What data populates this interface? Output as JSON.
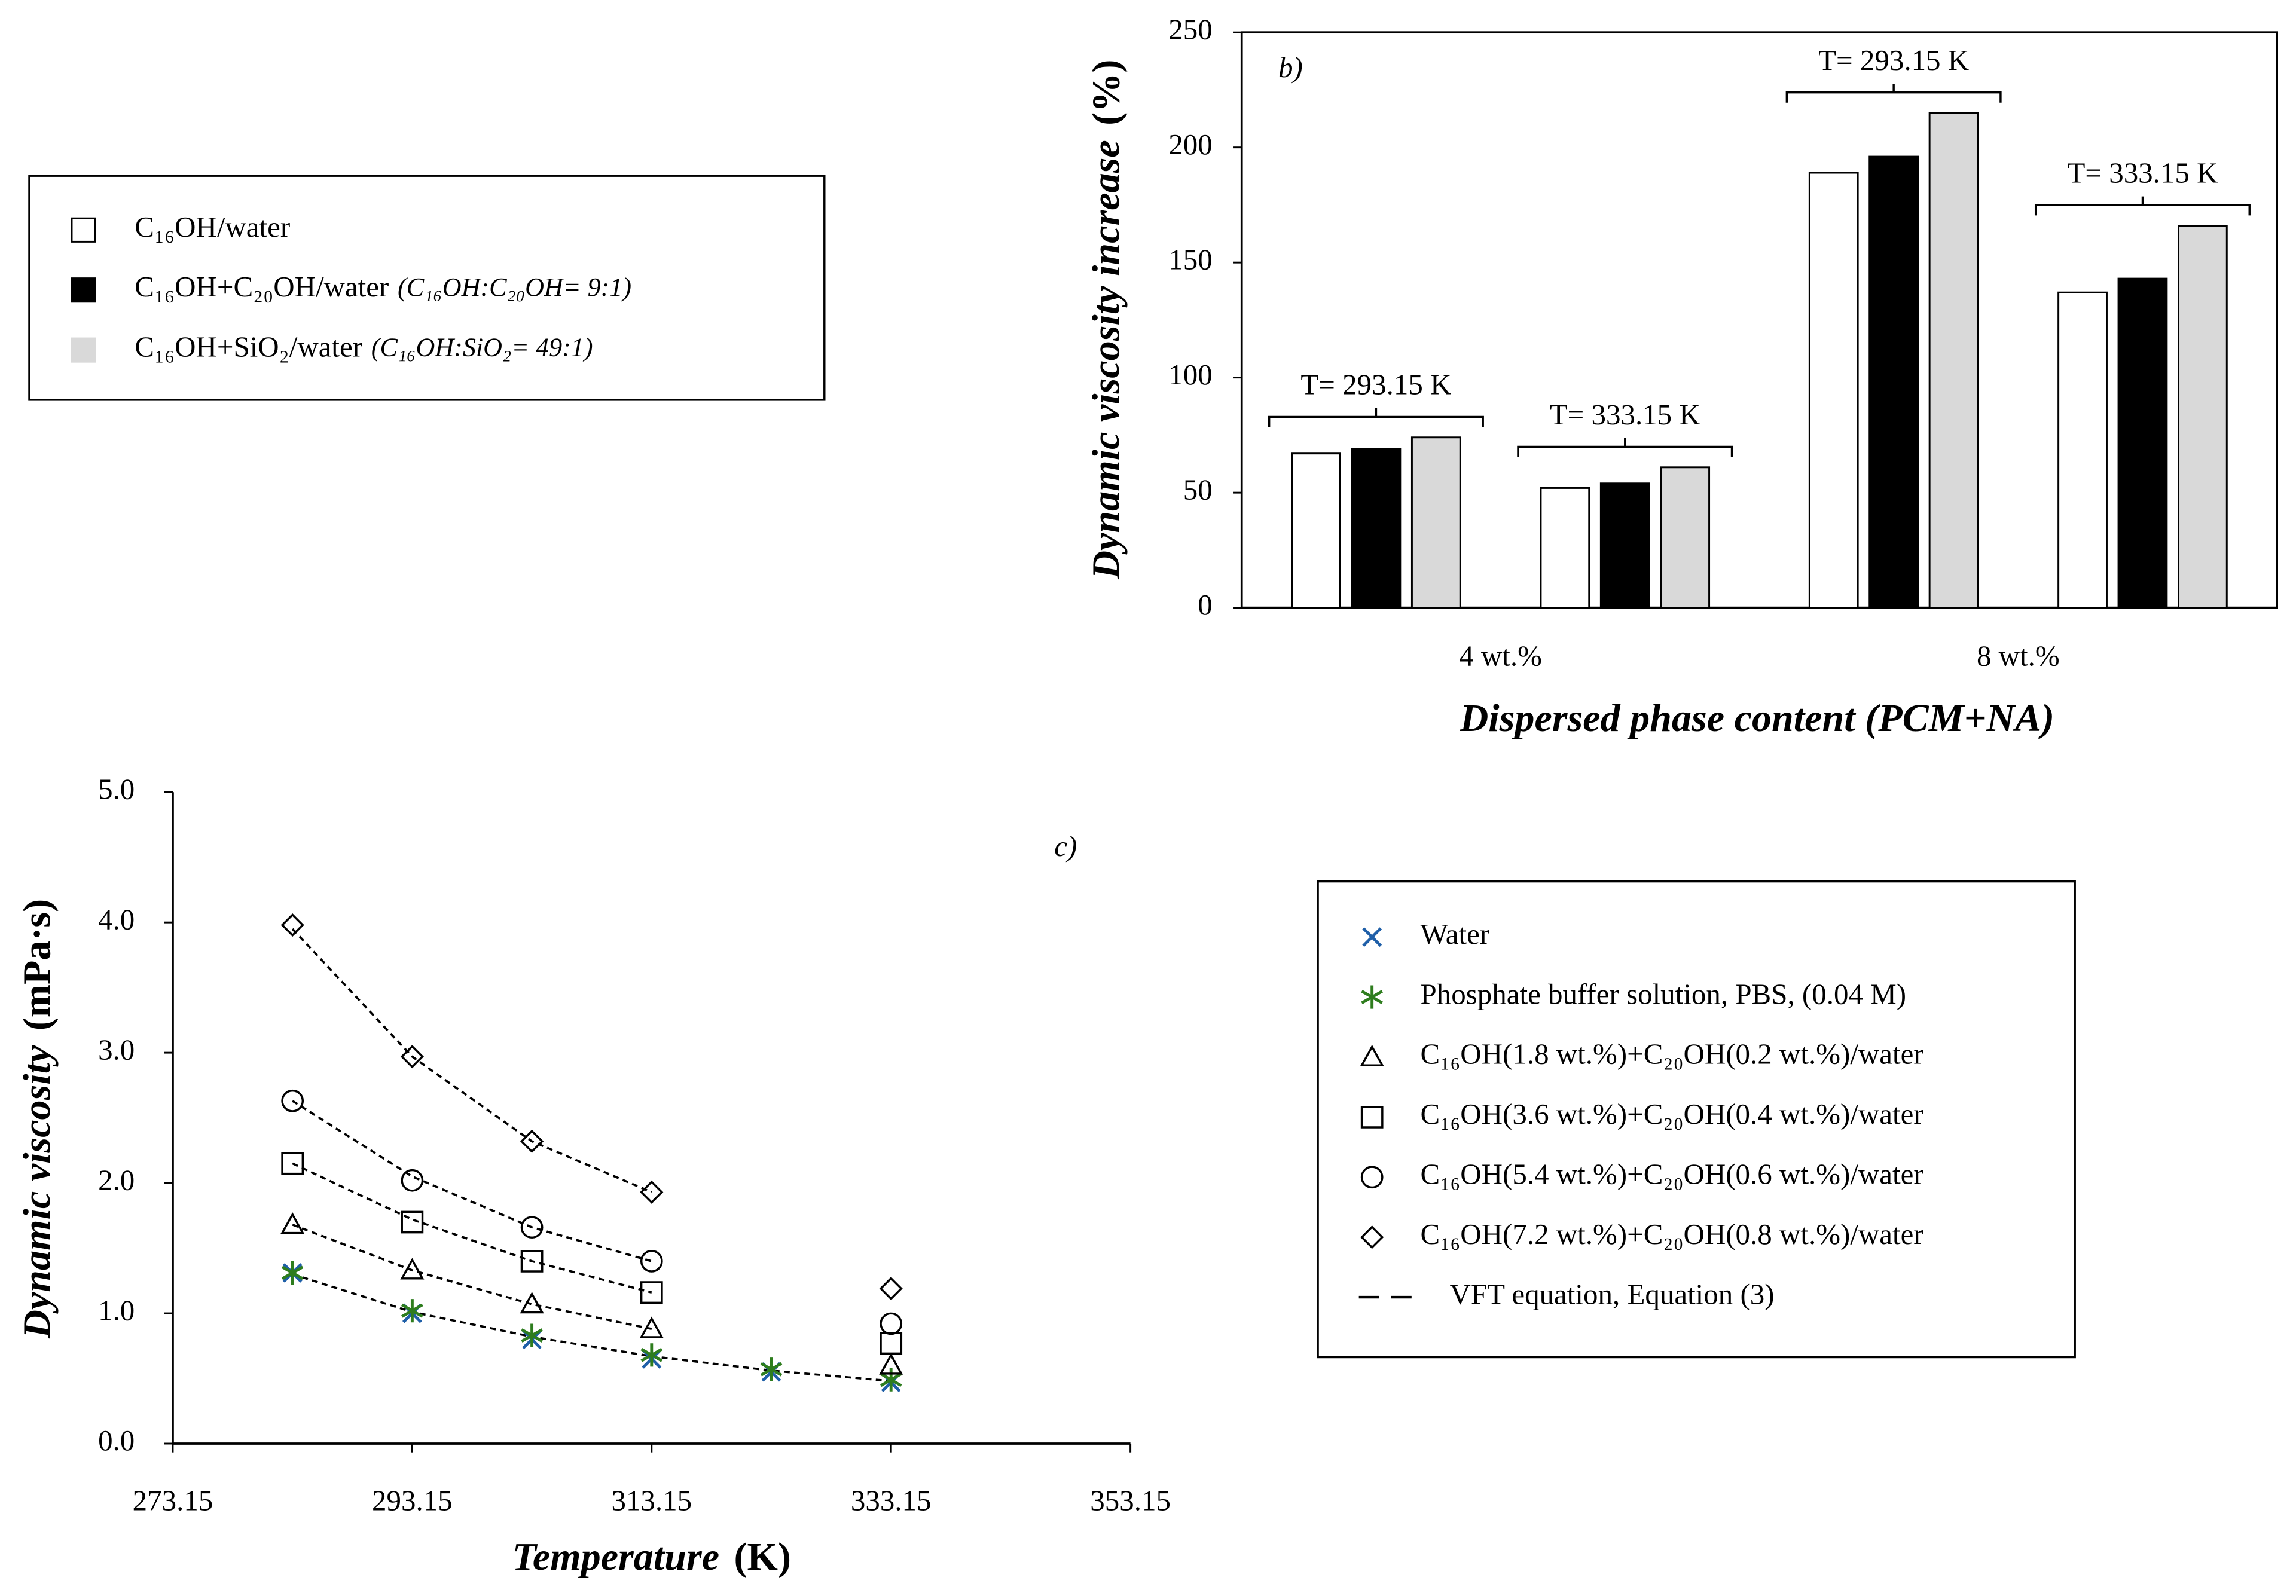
{
  "chart_data": [
    {
      "type": "bar",
      "panel": "b)",
      "ylabel": "Dynamic viscosity increase",
      "yunit": "(%)",
      "xlabel": "Dispersed phase content (PCM+NA)",
      "groups": [
        "4 wt.%",
        "8 wt.%"
      ],
      "categories": [
        "T= 293.15 K",
        "T= 333.15 K",
        "T= 293.15 K",
        "T= 333.15 K"
      ],
      "series": [
        {
          "name": "C₁₆OH/water",
          "color": "#ffffff",
          "values": [
            67,
            52,
            189,
            137
          ]
        },
        {
          "name": "C₁₆OH+C₂₀OH/water",
          "ratio": "(C₁₆OH:C₂₀OH= 9:1)",
          "color": "#000000",
          "values": [
            69,
            54,
            196,
            143
          ]
        },
        {
          "name": "C₁₆OH+SiO₂/water",
          "ratio": "(C₁₆OH:SiO₂= 49:1)",
          "color": "#d9d9d9",
          "values": [
            74,
            61,
            215,
            166
          ]
        }
      ],
      "ylim": [
        0,
        250
      ],
      "yticks": [
        0,
        50,
        100,
        150,
        200,
        250
      ]
    },
    {
      "type": "scatter",
      "panel": "c)",
      "ylabel": "Dynamic viscosity",
      "yunit": "(mPa·s)",
      "xlabel": "Temperature",
      "xunit": "(K)",
      "xlim": [
        273.15,
        353.15
      ],
      "xticks": [
        273.15,
        293.15,
        313.15,
        333.15,
        353.15
      ],
      "ylim": [
        0,
        5
      ],
      "yticks": [
        {
          "value": 0,
          "label": "0.0"
        },
        {
          "value": 1,
          "label": "1.0"
        },
        {
          "value": 2,
          "label": "2.0"
        },
        {
          "value": 3,
          "label": "3.0"
        },
        {
          "value": 4,
          "label": "4.0"
        },
        {
          "value": 5,
          "label": "5.0"
        }
      ],
      "series": [
        {
          "name": "Water",
          "color": "#1f5fa8",
          "marker": "x",
          "x": [
            283.15,
            293.15,
            303.15,
            313.15,
            323.15,
            333.15
          ],
          "values": [
            1.31,
            1.0,
            0.8,
            0.65,
            0.55,
            0.47
          ]
        },
        {
          "name": "Phosphate buffer solution, PBS, (0.04 M)",
          "color": "#2e7d1e",
          "marker": "asterisk",
          "x": [
            283.15,
            293.15,
            303.15,
            313.15,
            323.15,
            333.15
          ],
          "values": [
            1.31,
            1.02,
            0.83,
            0.68,
            0.57,
            0.49
          ]
        },
        {
          "name": "C₁₆OH(1.8 wt.%)+C₂₀OH(0.2 wt.%)/water",
          "color": "#000000",
          "marker": "triangle",
          "x": [
            283.15,
            293.15,
            303.15,
            313.15,
            333.15
          ],
          "values": [
            1.68,
            1.33,
            1.07,
            0.88,
            0.6
          ]
        },
        {
          "name": "C₁₆OH(3.6 wt.%)+C₂₀OH(0.4 wt.%)/water",
          "color": "#000000",
          "marker": "square",
          "x": [
            283.15,
            293.15,
            303.15,
            313.15,
            333.15
          ],
          "values": [
            2.15,
            1.7,
            1.4,
            1.16,
            0.77
          ]
        },
        {
          "name": "C₁₆OH(5.4 wt.%)+C₂₀OH(0.6 wt.%)/water",
          "color": "#000000",
          "marker": "circle",
          "x": [
            283.15,
            293.15,
            303.15,
            313.15,
            333.15
          ],
          "values": [
            2.63,
            2.02,
            1.66,
            1.4,
            0.92
          ]
        },
        {
          "name": "C₁₆OH(7.2 wt.%)+C₂₀OH(0.8 wt.%)/water",
          "color": "#000000",
          "marker": "diamond",
          "x": [
            283.15,
            293.15,
            303.15,
            313.15,
            333.15
          ],
          "values": [
            3.98,
            2.97,
            2.32,
            1.93,
            1.19
          ]
        }
      ],
      "vft": {
        "name": "VFT equation, Equation (3)",
        "color": "#000000",
        "curves": [
          {
            "x": [
              283.15,
              293.15,
              303.15,
              313.15,
              323.15,
              333.15
            ],
            "values": [
              1.3,
              1.01,
              0.82,
              0.67,
              0.56,
              0.48
            ]
          },
          {
            "x": [
              283.15,
              293.15,
              303.15,
              313.15
            ],
            "values": [
              1.68,
              1.33,
              1.07,
              0.88
            ]
          },
          {
            "x": [
              283.15,
              293.15,
              303.15,
              313.15
            ],
            "values": [
              2.15,
              1.72,
              1.4,
              1.16
            ]
          },
          {
            "x": [
              283.15,
              293.15,
              303.15,
              313.15
            ],
            "values": [
              2.63,
              2.05,
              1.66,
              1.4
            ]
          },
          {
            "x": [
              283.15,
              293.15,
              303.15,
              313.15
            ],
            "values": [
              3.95,
              2.97,
              2.32,
              1.93
            ]
          }
        ]
      }
    }
  ]
}
